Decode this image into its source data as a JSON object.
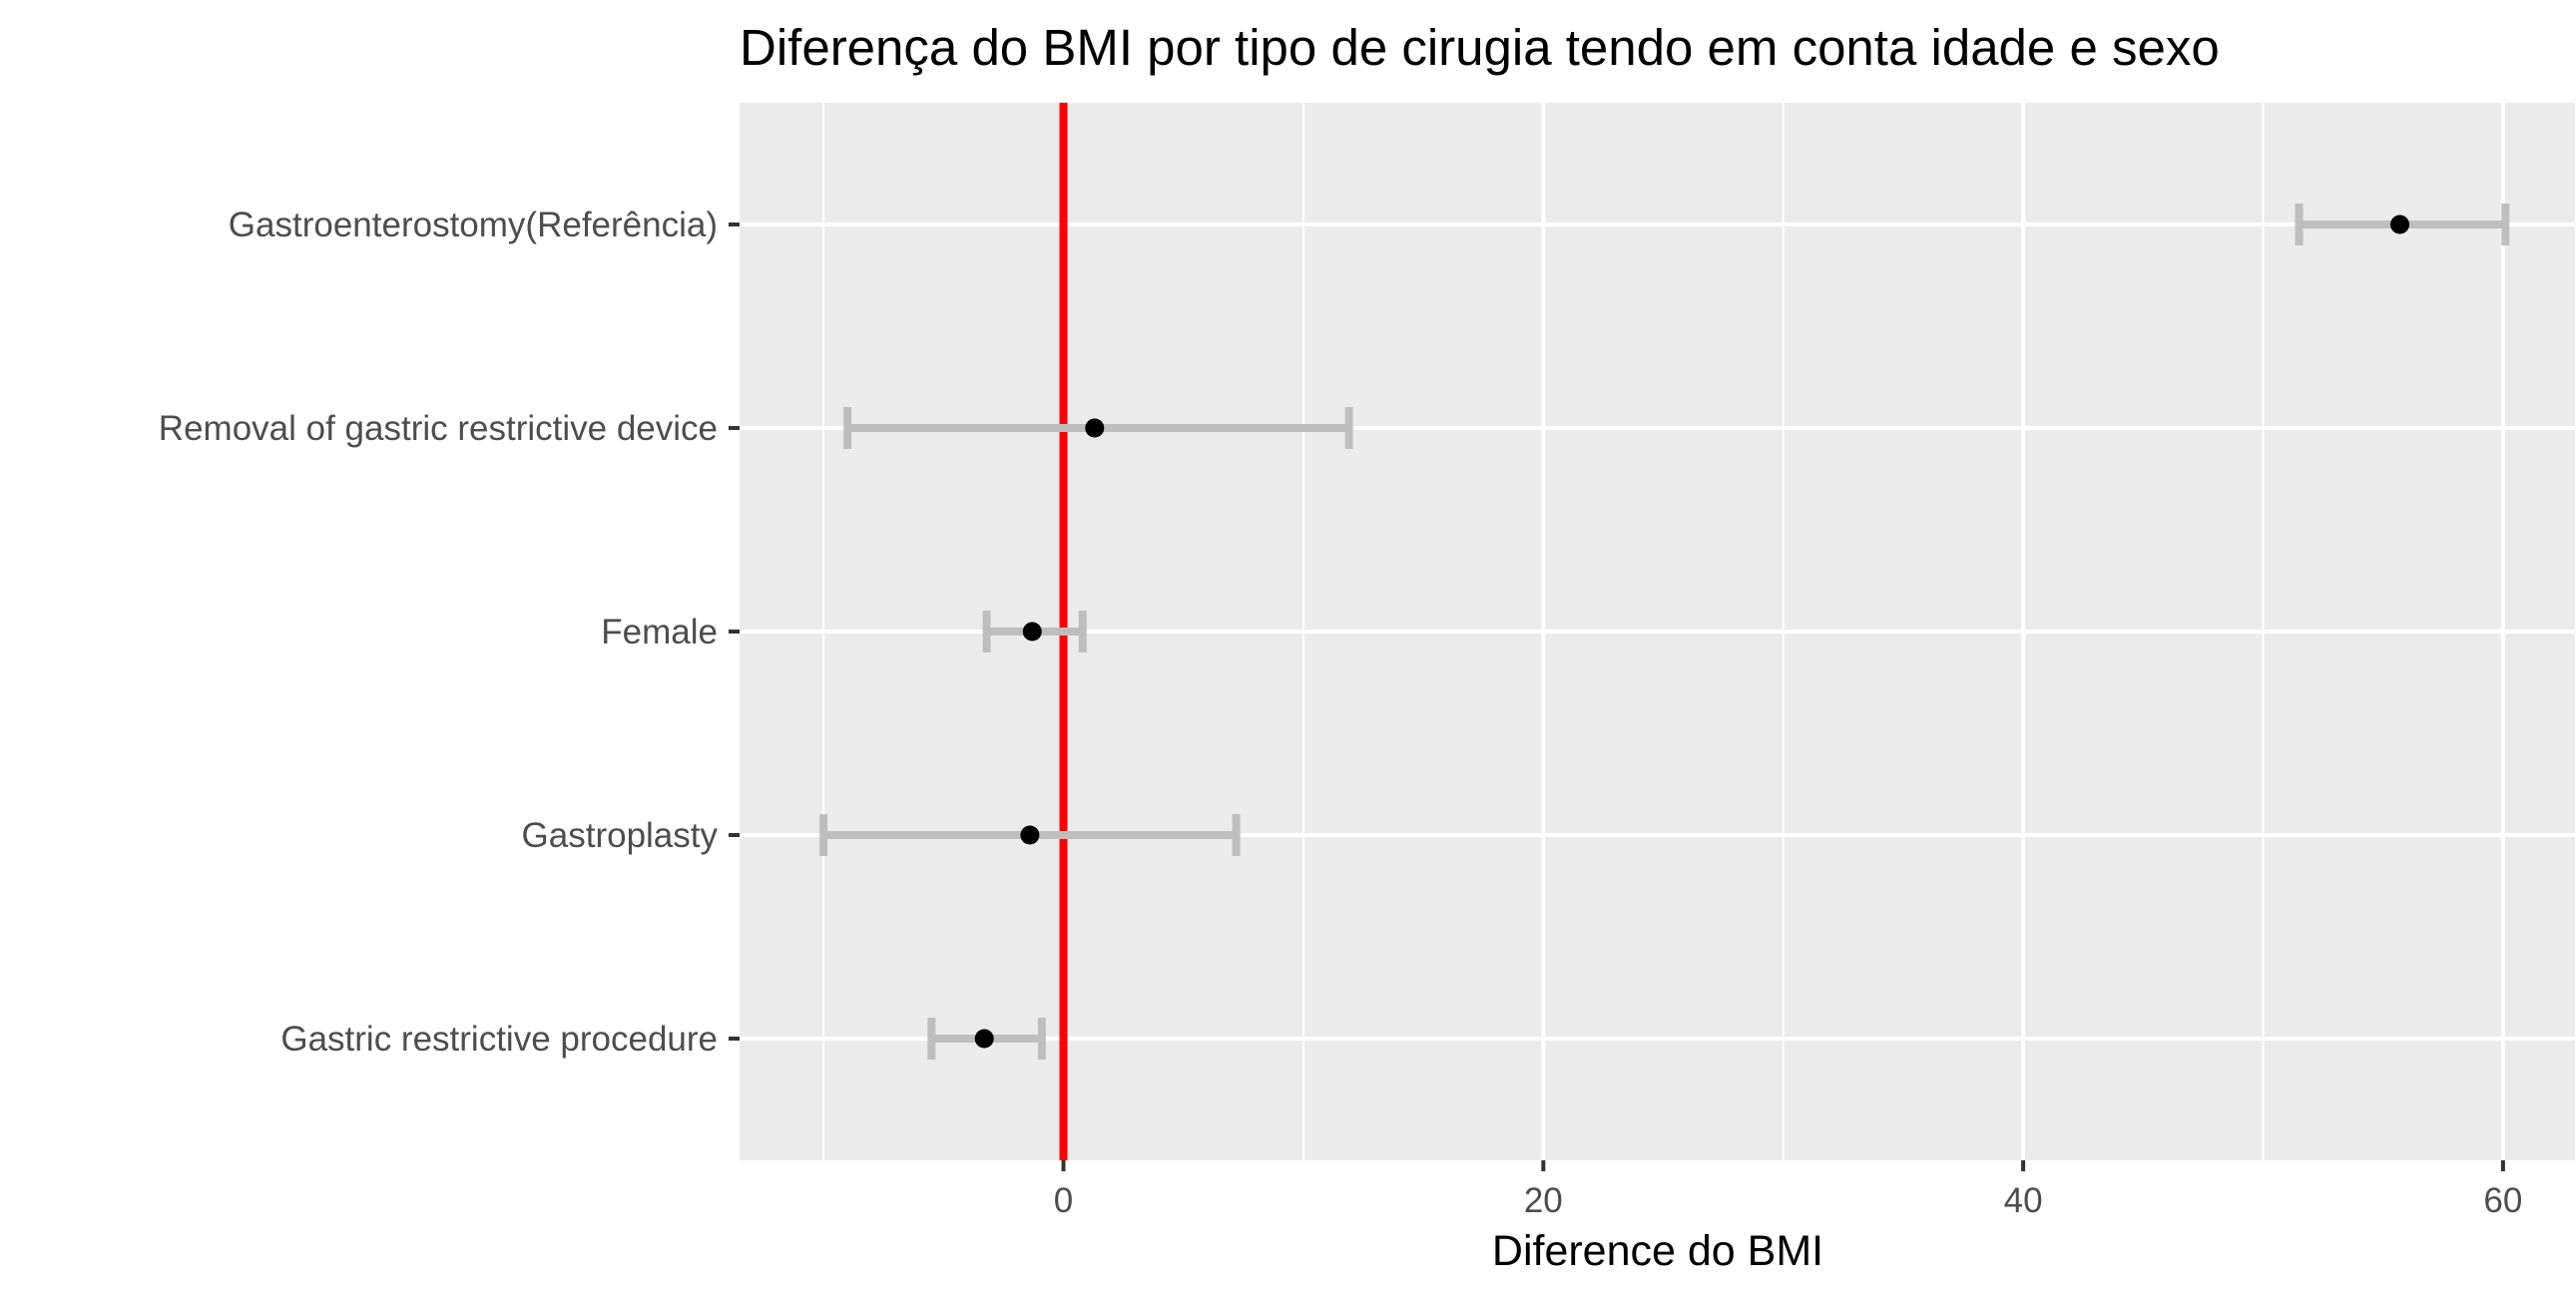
{
  "chart_data": {
    "type": "forest",
    "title": "Diferença do BMI por tipo de cirugia tendo em conta idade e sexo",
    "xlabel": "Diference do BMI",
    "ylabel": "",
    "xlim": [
      -13.5,
      63
    ],
    "x_ticks": [
      0,
      20,
      40,
      60
    ],
    "x_tick_labels": [
      "0",
      "20",
      "40",
      "60"
    ],
    "reference_line": {
      "x": 0,
      "color": "#ff0000"
    },
    "categories": [
      "Gastroenterostomy(Referência)",
      "Removal of gastric restrictive device",
      "Female",
      "Gastroplasty",
      "Gastric restrictive procedure"
    ],
    "points": [
      {
        "label": "Gastroenterostomy(Referência)",
        "estimate": 55.7,
        "lower": 51.5,
        "upper": 60.1
      },
      {
        "label": "Removal of gastric restrictive device",
        "estimate": 1.3,
        "lower": -9.0,
        "upper": 11.9
      },
      {
        "label": "Female",
        "estimate": -1.3,
        "lower": -3.2,
        "upper": 0.8
      },
      {
        "label": "Gastroplasty",
        "estimate": -1.4,
        "lower": -10.0,
        "upper": 7.2
      },
      {
        "label": "Gastric restrictive procedure",
        "estimate": -3.3,
        "lower": -5.5,
        "upper": -0.9
      }
    ],
    "grid": true,
    "colors": {
      "panel": "#ebebeb",
      "grid": "#ffffff",
      "errorbar": "#bebebe",
      "point": "#000000",
      "reference": "#ff0000"
    }
  }
}
